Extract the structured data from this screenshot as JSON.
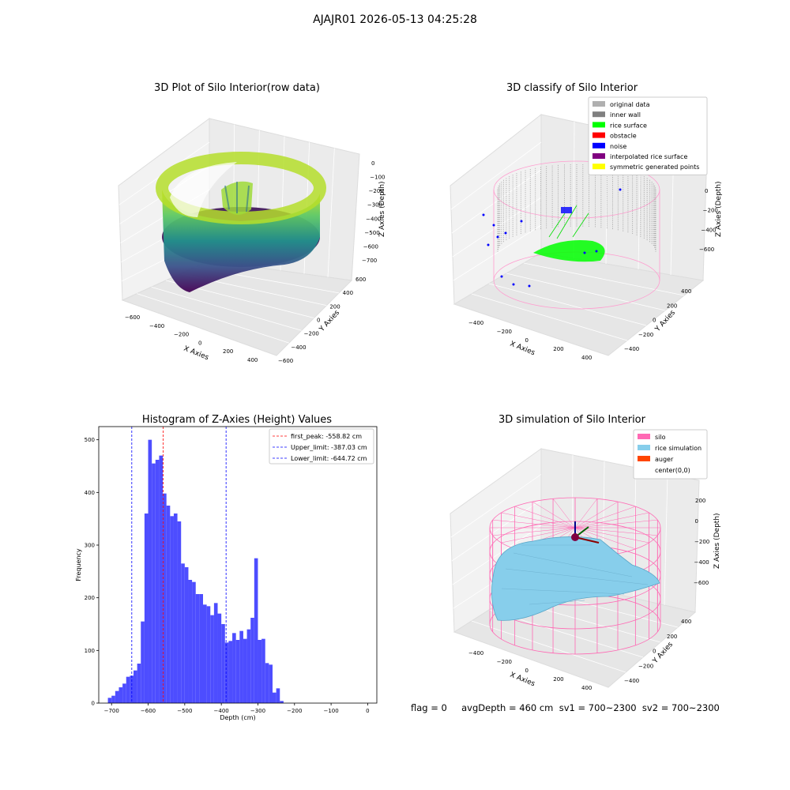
{
  "figure_title": "AJAJR01 2026-05-13 04:25:28",
  "footer": "flag = 0     avgDepth = 460 cm  sv1 = 700~2300  sv2 = 700~2300",
  "colors": {
    "histogram_bar": "#4d4dff",
    "first_peak_line": "#ff0000",
    "limit_lines": "#0000ff",
    "silo_wire": "#ff69b4",
    "rice_surface": "#87ceeb",
    "auger": "#ff4500"
  },
  "chart_data": [
    {
      "type": "scatter3d",
      "title": "3D Plot of Silo Interior(row data)",
      "xlabel": "X Axies",
      "ylabel": "Y Axies",
      "zlabel": "Z Axies (Depth)",
      "x_ticks": [
        "−600",
        "−400",
        "−200",
        "0",
        "200",
        "400"
      ],
      "y_ticks": [
        "−600",
        "−400",
        "−200",
        "0",
        "200",
        "400",
        "600"
      ],
      "z_ticks": [
        "0",
        "−100",
        "−200",
        "−300",
        "−400",
        "−500",
        "−600",
        "−700"
      ],
      "colormap": "viridis"
    },
    {
      "type": "scatter3d",
      "title": "3D classify of Silo Interior",
      "xlabel": "X Axies",
      "ylabel": "Y Axies",
      "zlabel": "Z Axies (Depth)",
      "x_ticks": [
        "−400",
        "−200",
        "0",
        "200",
        "400"
      ],
      "y_ticks": [
        "−400",
        "−200",
        "0",
        "200",
        "400"
      ],
      "z_ticks": [
        "0",
        "−200",
        "−400",
        "−600"
      ],
      "legend": [
        {
          "label": "original data",
          "color": "#b0b0b0"
        },
        {
          "label": "inner wall",
          "color": "#808080"
        },
        {
          "label": "rice surface",
          "color": "#00ff00"
        },
        {
          "label": "obstacle",
          "color": "#ff0000"
        },
        {
          "label": "noise",
          "color": "#0000ff"
        },
        {
          "label": "interpolated rice surface",
          "color": "#800080"
        },
        {
          "label": "symmetric generated points",
          "color": "#ffff00"
        }
      ]
    },
    {
      "type": "bar",
      "title": "Histogram of Z-Axies (Height) Values",
      "xlabel": "Depth (cm)",
      "ylabel": "Frequency",
      "xlim": [
        -735,
        25
      ],
      "ylim": [
        0,
        525
      ],
      "x_ticks": [
        -700,
        -600,
        -500,
        -400,
        -300,
        -200,
        -100,
        0
      ],
      "x_tick_labels": [
        "−700",
        "−600",
        "−500",
        "−400",
        "−300",
        "−200",
        "−100",
        "0"
      ],
      "y_ticks": [
        0,
        100,
        200,
        300,
        400,
        500
      ],
      "bin_start": -710,
      "bin_width": 10,
      "values": [
        10,
        14,
        23,
        30,
        37,
        50,
        52,
        62,
        75,
        155,
        360,
        500,
        455,
        462,
        470,
        398,
        375,
        355,
        360,
        345,
        265,
        258,
        234,
        230,
        207,
        207,
        187,
        184,
        167,
        190,
        170,
        150,
        115,
        118,
        133,
        120,
        137,
        122,
        140,
        162,
        275,
        120,
        122,
        76,
        73,
        20,
        28,
        4
      ],
      "lines": [
        {
          "label": "first_peak: -558.82 cm",
          "x": -558.82,
          "color": "#ff0000"
        },
        {
          "label": "Upper_limit: -387.03 cm",
          "x": -387.03,
          "color": "#0000ff"
        },
        {
          "label": "Lower_limit: -644.72 cm",
          "x": -644.72,
          "color": "#0000ff"
        }
      ],
      "legend_position": "upper right"
    },
    {
      "type": "surface3d",
      "title": "3D simulation of Silo Interior",
      "xlabel": "X Axies",
      "ylabel": "Y Axies",
      "zlabel": "Z Axies (Depth)",
      "x_ticks": [
        "−400",
        "−200",
        "0",
        "200",
        "400"
      ],
      "y_ticks": [
        "−400",
        "−200",
        "0",
        "200",
        "400"
      ],
      "z_ticks": [
        "200",
        "0",
        "−200",
        "−400",
        "−600"
      ],
      "legend": [
        {
          "label": "silo",
          "color": "#ff69b4"
        },
        {
          "label": "rice simulation",
          "color": "#87ceeb"
        },
        {
          "label": "auger",
          "color": "#ff4500"
        },
        {
          "label": "center(0,0)",
          "color": ""
        }
      ]
    }
  ]
}
